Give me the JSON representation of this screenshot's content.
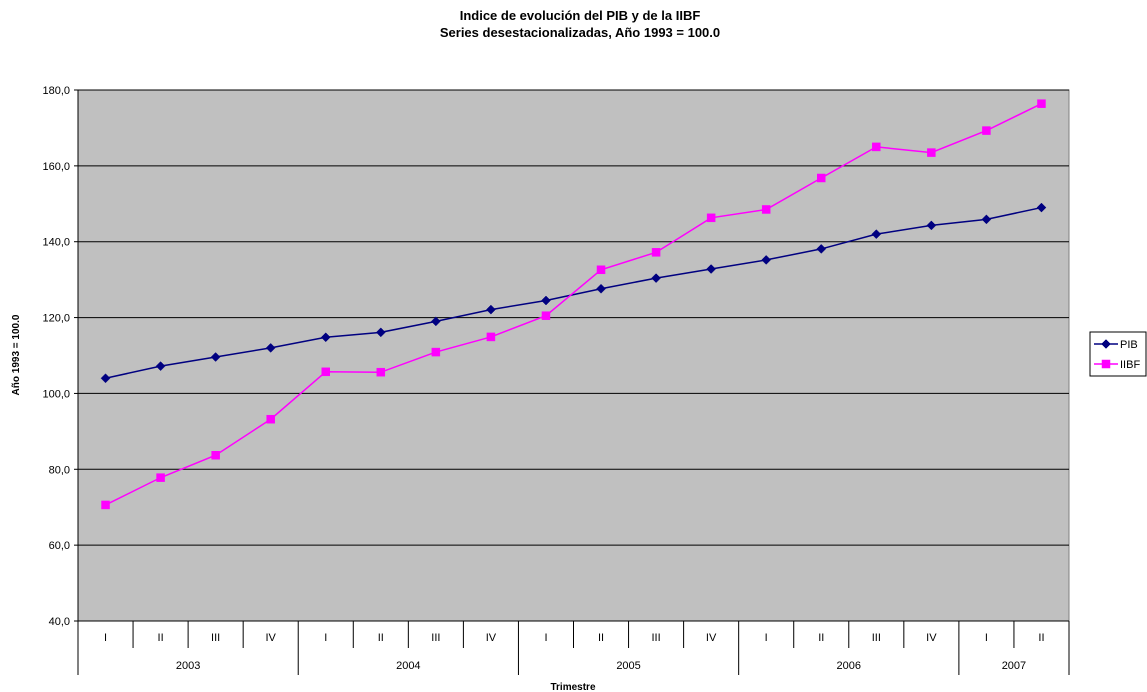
{
  "chart_data": {
    "type": "line",
    "title": "Indice de evolución del PIB y de la IIBF",
    "subtitle": "Series desestacionalizadas, Año 1993 = 100.0",
    "xlabel": "Trimestre",
    "ylabel": "Año 1993 = 100.0",
    "ylim": [
      40,
      180
    ],
    "y_ticks": [
      "40,0",
      "60,0",
      "80,0",
      "100,0",
      "120,0",
      "140,0",
      "160,0",
      "180,0"
    ],
    "y_tick_values": [
      40,
      60,
      80,
      100,
      120,
      140,
      160,
      180
    ],
    "categories": [
      "I",
      "II",
      "III",
      "IV",
      "I",
      "II",
      "III",
      "IV",
      "I",
      "II",
      "III",
      "IV",
      "I",
      "II",
      "III",
      "IV",
      "I",
      "II"
    ],
    "year_groups": [
      {
        "label": "2003",
        "count": 4
      },
      {
        "label": "2004",
        "count": 4
      },
      {
        "label": "2005",
        "count": 4
      },
      {
        "label": "2006",
        "count": 4
      },
      {
        "label": "2007",
        "count": 2
      }
    ],
    "series": [
      {
        "name": "PIB",
        "color": "#000080",
        "marker": "diamond",
        "values": [
          104.0,
          107.2,
          109.6,
          112.0,
          114.8,
          116.1,
          119.0,
          122.1,
          124.5,
          127.6,
          130.4,
          132.8,
          135.2,
          138.1,
          142.0,
          144.3,
          145.9,
          149.0
        ]
      },
      {
        "name": "IIBF",
        "color": "#ff00ff",
        "marker": "square",
        "values": [
          70.6,
          77.8,
          83.7,
          93.2,
          105.7,
          105.6,
          110.9,
          114.9,
          120.5,
          132.6,
          137.2,
          146.3,
          148.5,
          156.8,
          165.0,
          163.5,
          169.3,
          176.4
        ]
      }
    ],
    "plot_background": "#c0c0c0",
    "grid": true,
    "legend_position": "right"
  }
}
